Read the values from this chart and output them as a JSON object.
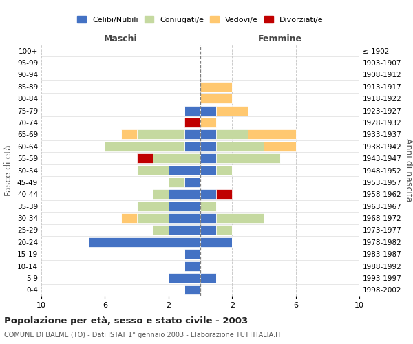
{
  "age_groups": [
    "0-4",
    "5-9",
    "10-14",
    "15-19",
    "20-24",
    "25-29",
    "30-34",
    "35-39",
    "40-44",
    "45-49",
    "50-54",
    "55-59",
    "60-64",
    "65-69",
    "70-74",
    "75-79",
    "80-84",
    "85-89",
    "90-94",
    "95-99",
    "100+"
  ],
  "birth_years": [
    "1998-2002",
    "1993-1997",
    "1988-1992",
    "1983-1987",
    "1978-1982",
    "1973-1977",
    "1968-1972",
    "1963-1967",
    "1958-1962",
    "1953-1957",
    "1948-1952",
    "1943-1947",
    "1938-1942",
    "1933-1937",
    "1928-1932",
    "1923-1927",
    "1918-1922",
    "1913-1917",
    "1908-1912",
    "1903-1907",
    "≤ 1902"
  ],
  "maschi": {
    "celibi": [
      1,
      2,
      1,
      1,
      7,
      2,
      2,
      2,
      2,
      1,
      2,
      0,
      1,
      1,
      0,
      1,
      0,
      0,
      0,
      0,
      0
    ],
    "coniugati": [
      0,
      0,
      0,
      0,
      0,
      1,
      2,
      2,
      1,
      1,
      2,
      3,
      5,
      3,
      0,
      0,
      0,
      0,
      0,
      0,
      0
    ],
    "vedovi": [
      0,
      0,
      0,
      0,
      0,
      0,
      1,
      0,
      0,
      0,
      0,
      0,
      0,
      1,
      0,
      0,
      0,
      0,
      0,
      0,
      0
    ],
    "divorziati": [
      0,
      0,
      0,
      0,
      0,
      0,
      0,
      0,
      0,
      0,
      0,
      1,
      0,
      0,
      1,
      0,
      0,
      0,
      0,
      0,
      0
    ]
  },
  "femmine": {
    "nubili": [
      0,
      1,
      0,
      0,
      2,
      1,
      1,
      0,
      1,
      0,
      1,
      1,
      1,
      1,
      0,
      1,
      0,
      0,
      0,
      0,
      0
    ],
    "coniugate": [
      0,
      0,
      0,
      0,
      0,
      1,
      3,
      1,
      0,
      0,
      1,
      4,
      3,
      2,
      0,
      0,
      0,
      0,
      0,
      0,
      0
    ],
    "vedove": [
      0,
      0,
      0,
      0,
      0,
      0,
      0,
      0,
      0,
      0,
      0,
      0,
      2,
      3,
      1,
      2,
      2,
      2,
      0,
      0,
      0
    ],
    "divorziate": [
      0,
      0,
      0,
      0,
      0,
      0,
      0,
      0,
      1,
      0,
      0,
      0,
      0,
      0,
      0,
      0,
      0,
      0,
      0,
      0,
      0
    ]
  },
  "color_celibi": "#4472c4",
  "color_coniugati": "#c5d9a0",
  "color_vedovi": "#ffc870",
  "color_divorziati": "#c00000",
  "xlim": 10,
  "title": "Popolazione per età, sesso e stato civile - 2003",
  "subtitle": "COMUNE DI BALME (TO) - Dati ISTAT 1° gennaio 2003 - Elaborazione TUTTITALIA.IT",
  "ylabel_left": "Fasce di età",
  "ylabel_right": "Anni di nascita"
}
